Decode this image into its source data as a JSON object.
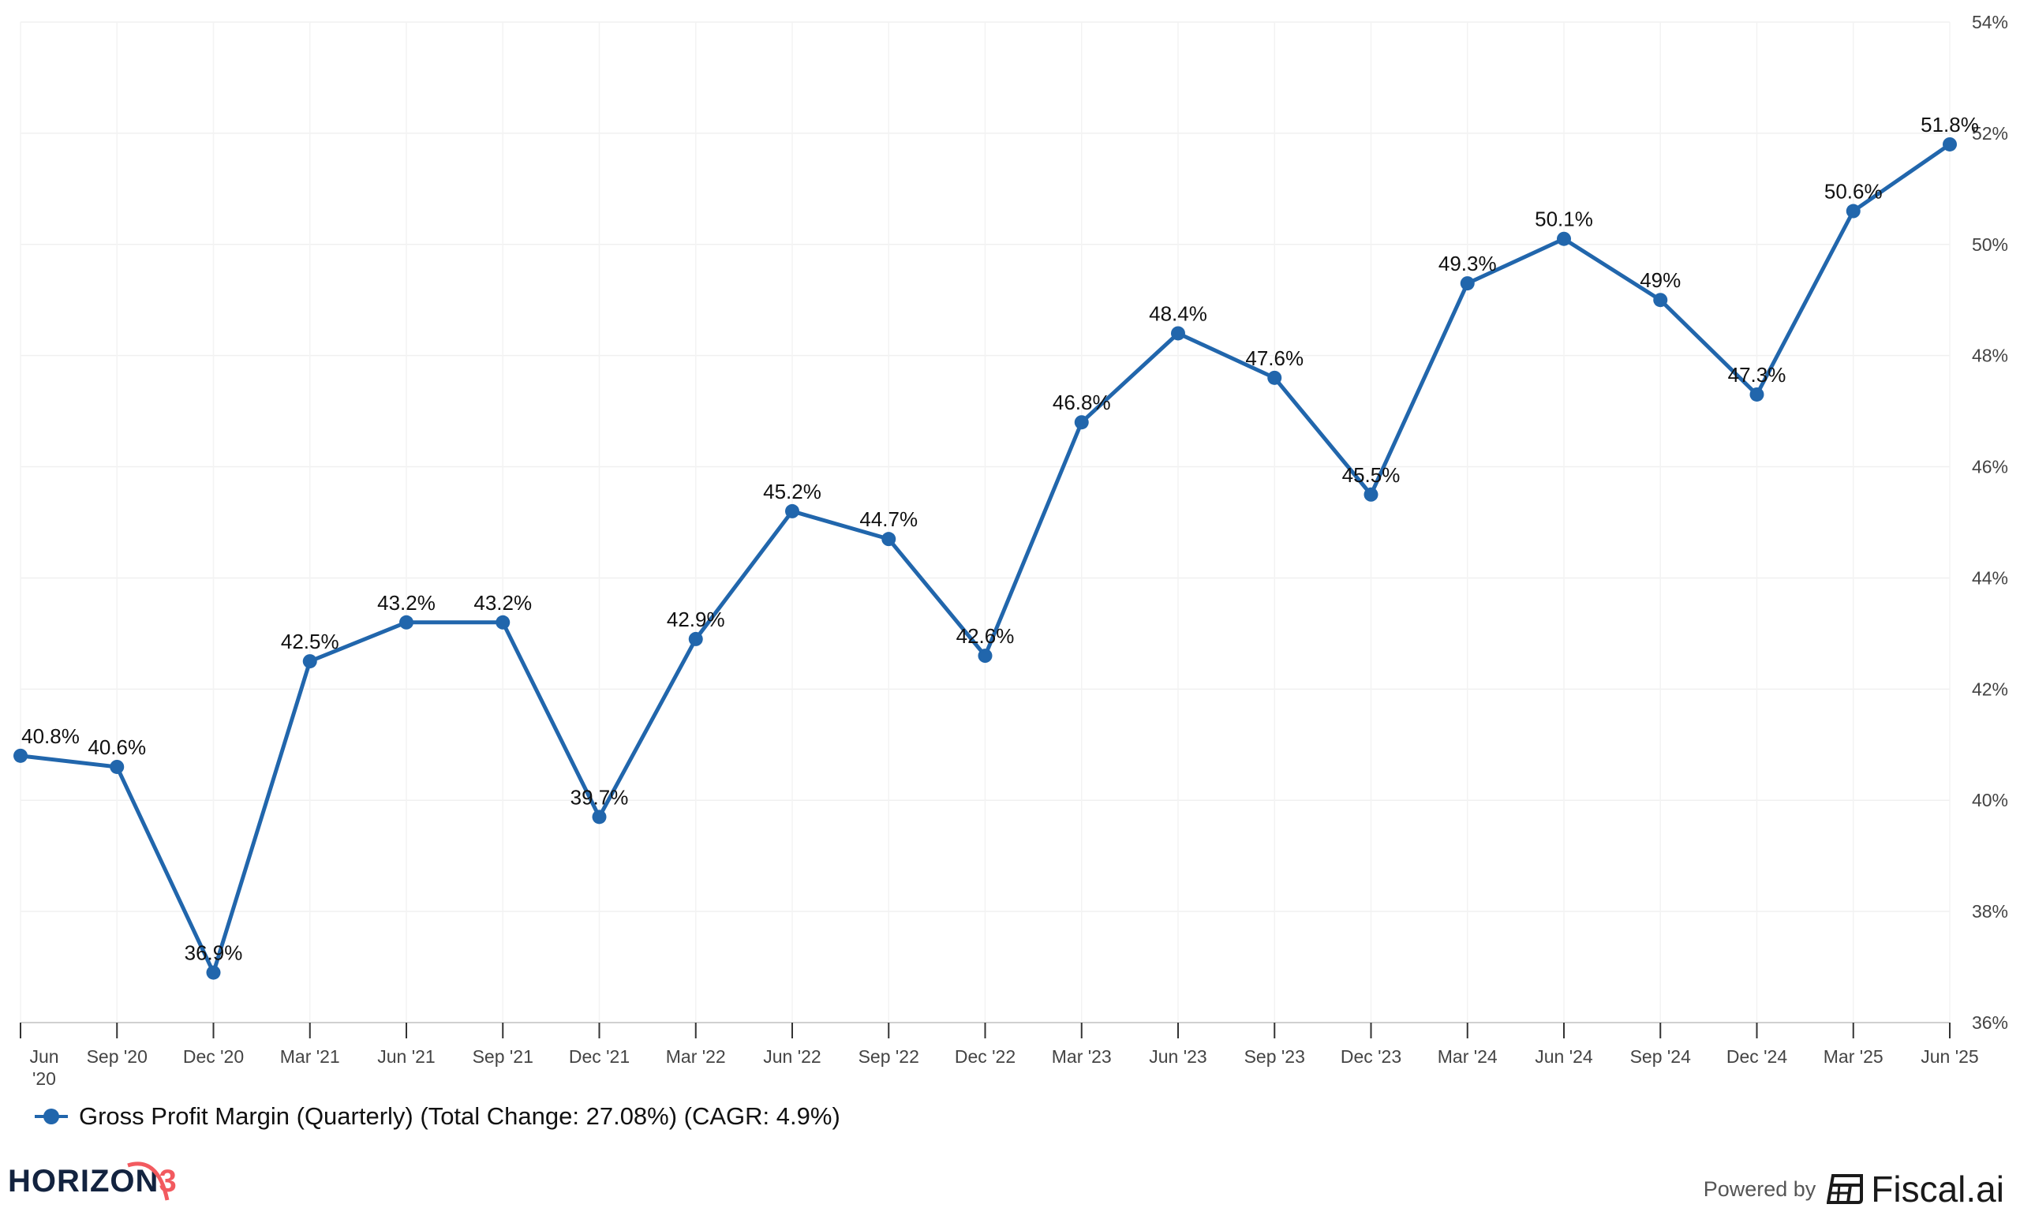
{
  "chart_data": {
    "type": "line",
    "title": "",
    "xlabel": "",
    "ylabel": "",
    "categories": [
      "Jun '20",
      "Sep '20",
      "Dec '20",
      "Mar '21",
      "Jun '21",
      "Sep '21",
      "Dec '21",
      "Mar '22",
      "Jun '22",
      "Sep '22",
      "Dec '22",
      "Mar '23",
      "Jun '23",
      "Sep '23",
      "Dec '23",
      "Mar '24",
      "Jun '24",
      "Sep '24",
      "Dec '24",
      "Mar '25",
      "Jun '25"
    ],
    "series": [
      {
        "name": "Gross Profit Margin (Quarterly) (Total Change: 27.08%) (CAGR: 4.9%)",
        "values": [
          40.8,
          40.6,
          36.9,
          42.5,
          43.2,
          43.2,
          39.7,
          42.9,
          45.2,
          44.7,
          42.6,
          46.8,
          48.4,
          47.6,
          45.5,
          49.3,
          50.1,
          49,
          47.3,
          50.6,
          51.8
        ],
        "labels": [
          "40.8%",
          "40.6%",
          "36.9%",
          "42.5%",
          "43.2%",
          "43.2%",
          "39.7%",
          "42.9%",
          "45.2%",
          "44.7%",
          "42.6%",
          "46.8%",
          "48.4%",
          "47.6%",
          "45.5%",
          "49.3%",
          "50.1%",
          "49%",
          "47.3%",
          "50.6%",
          "51.8%"
        ],
        "color": "#2166ac"
      }
    ],
    "ylim": [
      36,
      54
    ],
    "yticks": [
      "36%",
      "38%",
      "40%",
      "42%",
      "44%",
      "46%",
      "48%",
      "50%",
      "52%",
      "54%"
    ],
    "y_axis_position": "right",
    "grid": true,
    "legend_position": "bottom-left"
  },
  "footer": {
    "logo_left": "HORIZON3",
    "powered_by": "Powered by",
    "brand": "Fiscal.ai"
  }
}
